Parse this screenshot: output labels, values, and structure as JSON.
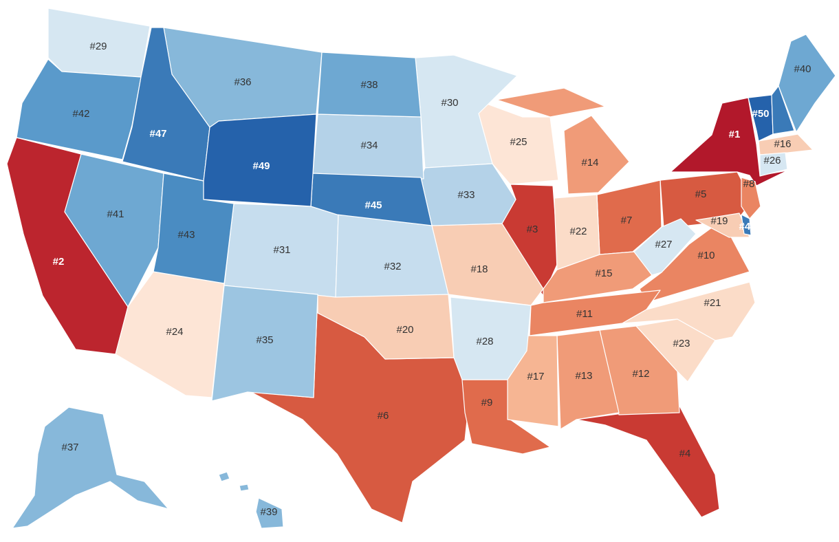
{
  "colors": {
    "r1": "#b2182b",
    "r2": "#bc252e",
    "r3": "#c93a33",
    "r4": "#d0493a",
    "r5": "#d75a41",
    "r6": "#e06b4c",
    "r7": "#ea8562",
    "r8": "#f09b78",
    "r9": "#f6b593",
    "r10": "#f8cdb4",
    "r11": "#fbdcc8",
    "r12": "#fde5d6",
    "b1": "#d6e7f2",
    "b2": "#c6ddee",
    "b3": "#b4d2e8",
    "b4": "#9cc5e1",
    "b5": "#87b8da",
    "b6": "#6ea8d2",
    "b7": "#5a9acb",
    "b8": "#4a8cc2",
    "b9": "#3a7ab8",
    "b10": "#2c6cb0",
    "b11": "#2562ab"
  },
  "states": [
    {
      "id": "NY",
      "rank": "#1"
    },
    {
      "id": "CA",
      "rank": "#2"
    },
    {
      "id": "IL",
      "rank": "#3"
    },
    {
      "id": "FL",
      "rank": "#4"
    },
    {
      "id": "PA",
      "rank": "#5"
    },
    {
      "id": "TX",
      "rank": "#6"
    },
    {
      "id": "OH",
      "rank": "#7"
    },
    {
      "id": "NJ",
      "rank": "#8"
    },
    {
      "id": "LA",
      "rank": "#9"
    },
    {
      "id": "VA",
      "rank": "#10"
    },
    {
      "id": "TN",
      "rank": "#11"
    },
    {
      "id": "GA",
      "rank": "#12"
    },
    {
      "id": "AL",
      "rank": "#13"
    },
    {
      "id": "MI",
      "rank": "#14"
    },
    {
      "id": "KY",
      "rank": "#15"
    },
    {
      "id": "MA",
      "rank": "#16"
    },
    {
      "id": "MS",
      "rank": "#17"
    },
    {
      "id": "MO",
      "rank": "#18"
    },
    {
      "id": "MD",
      "rank": "#19"
    },
    {
      "id": "OK",
      "rank": "#20"
    },
    {
      "id": "NC",
      "rank": "#21"
    },
    {
      "id": "IN",
      "rank": "#22"
    },
    {
      "id": "SC",
      "rank": "#23"
    },
    {
      "id": "AZ",
      "rank": "#24"
    },
    {
      "id": "WI",
      "rank": "#25"
    },
    {
      "id": "CT",
      "rank": "#26"
    },
    {
      "id": "WV",
      "rank": "#27"
    },
    {
      "id": "AR",
      "rank": "#28"
    },
    {
      "id": "WA",
      "rank": "#29"
    },
    {
      "id": "MN",
      "rank": "#30"
    },
    {
      "id": "CO",
      "rank": "#31"
    },
    {
      "id": "KS",
      "rank": "#32"
    },
    {
      "id": "IA",
      "rank": "#33"
    },
    {
      "id": "SD",
      "rank": "#34"
    },
    {
      "id": "NM",
      "rank": "#35"
    },
    {
      "id": "MT",
      "rank": "#36"
    },
    {
      "id": "AK",
      "rank": "#37"
    },
    {
      "id": "ND",
      "rank": "#38"
    },
    {
      "id": "HI",
      "rank": "#39"
    },
    {
      "id": "ME",
      "rank": "#40"
    },
    {
      "id": "NV",
      "rank": "#41"
    },
    {
      "id": "OR",
      "rank": "#42"
    },
    {
      "id": "UT",
      "rank": "#43"
    },
    {
      "id": "NE",
      "rank": "#45"
    },
    {
      "id": "DE",
      "rank": "#46"
    },
    {
      "id": "ID",
      "rank": "#47"
    },
    {
      "id": "WY",
      "rank": "#49"
    },
    {
      "id": "VT",
      "rank": "#50"
    }
  ]
}
